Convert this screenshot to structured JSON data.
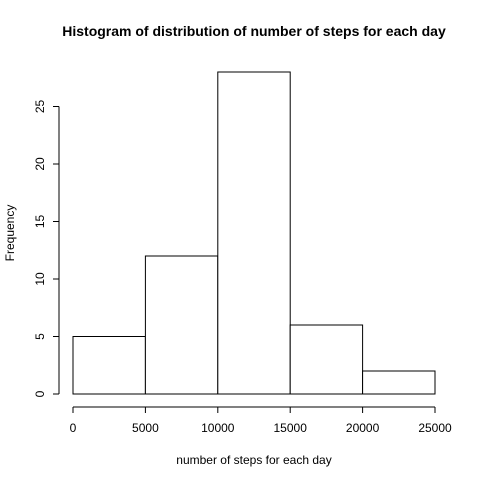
{
  "chart_data": {
    "type": "bar",
    "title": "Histogram of distribution of number of steps for each day",
    "xlabel": "number of steps for each day",
    "ylabel": "Frequency",
    "bins": [
      {
        "start": 0,
        "end": 5000,
        "count": 5
      },
      {
        "start": 5000,
        "end": 10000,
        "count": 12
      },
      {
        "start": 10000,
        "end": 15000,
        "count": 28
      },
      {
        "start": 15000,
        "end": 20000,
        "count": 6
      },
      {
        "start": 20000,
        "end": 25000,
        "count": 2
      }
    ],
    "xlim": [
      0,
      25000
    ],
    "ylim": [
      0,
      28
    ],
    "x_ticks": [
      0,
      5000,
      10000,
      15000,
      20000,
      25000
    ],
    "y_ticks": [
      0,
      5,
      10,
      15,
      20,
      25
    ],
    "grid": false,
    "bar_fill": "#ffffff",
    "bar_stroke": "#000000"
  }
}
